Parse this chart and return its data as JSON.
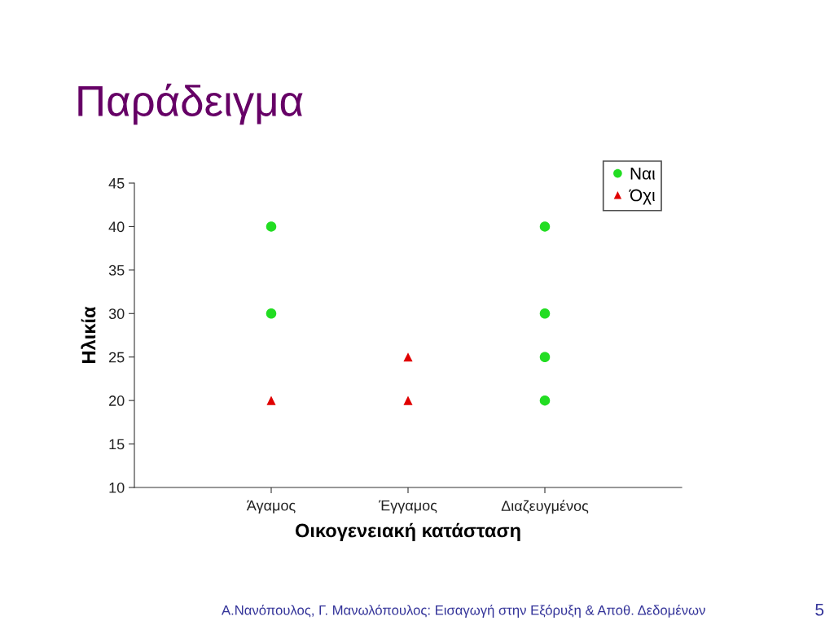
{
  "chart_data": {
    "type": "scatter",
    "title": "Παράδειγμα",
    "xlabel": "Οικογενειακή κατάσταση",
    "ylabel": "Ηλικία",
    "categories": [
      "Άγαμος",
      "Έγγαμος",
      "Διαζευγμένος"
    ],
    "series": [
      {
        "name": "Ναι",
        "color": "#22dd22",
        "marker": "circle",
        "x": [
          "Άγαμος",
          "Άγαμος",
          "Διαζευγμένος",
          "Διαζευγμένος",
          "Διαζευγμένος",
          "Διαζευγμένος"
        ],
        "values": [
          40,
          30,
          40,
          30,
          25,
          20
        ]
      },
      {
        "name": "Όχι",
        "color": "#e00000",
        "marker": "triangle",
        "x": [
          "Άγαμος",
          "Έγγαμος",
          "Έγγαμος"
        ],
        "values": [
          20,
          25,
          20
        ]
      }
    ],
    "ylim": [
      10,
      45
    ],
    "yticks": [
      10,
      15,
      20,
      25,
      30,
      35,
      40,
      45
    ],
    "legend": "top right",
    "annotations": [
      "Α.Νανόπουλος, Γ. Μανωλόπουλος: Εισαγωγή στην Εξόρυξη & Αποθ. Δεδομένων",
      "5"
    ]
  }
}
